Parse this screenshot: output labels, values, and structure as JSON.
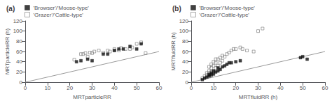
{
  "chart_data": [
    {
      "type": "scatter",
      "title": "(a)",
      "xlabel": "MRTparticleRR",
      "ylabel": "MRTparticleRR (h)",
      "xlim": [
        0,
        60
      ],
      "ylim": [
        0,
        120
      ],
      "xticks": [
        0,
        10,
        20,
        30,
        40,
        50,
        60
      ],
      "yticks": [
        0,
        20,
        40,
        60,
        80,
        100,
        120
      ],
      "grid": false,
      "legend": "upper left",
      "series": [
        {
          "type": "line",
          "color": "#999999",
          "x": [
            0,
            60
          ],
          "values": [
            0,
            60
          ]
        },
        {
          "name": "'Grazer'/'Cattle-type'",
          "type": "scatter",
          "marker": "open_square",
          "color": "#777777",
          "x": [
            22,
            25,
            26,
            27,
            28,
            29,
            30,
            31,
            33,
            35,
            37,
            38,
            40,
            40,
            42,
            43,
            45,
            47,
            48,
            50,
            52,
            54
          ],
          "values": [
            44,
            55,
            55,
            57,
            50,
            58,
            57,
            60,
            62,
            58,
            62,
            60,
            62,
            65,
            62,
            67,
            65,
            65,
            68,
            75,
            78,
            57
          ]
        },
        {
          "name": "'Browser'/'Moose-type'",
          "type": "scatter",
          "marker": "square",
          "color": "#111111",
          "x": [
            23,
            25,
            28,
            30,
            35,
            37,
            40,
            42,
            44,
            47,
            50,
            52
          ],
          "values": [
            40,
            42,
            45,
            42,
            55,
            55,
            62,
            65,
            65,
            70,
            65,
            75
          ]
        }
      ]
    },
    {
      "type": "scatter",
      "title": "(b)",
      "xlabel": "MRTfluidRR (h)",
      "ylabel": "MRTfluidRR (h)",
      "xlim": [
        0,
        60
      ],
      "ylim": [
        0,
        120
      ],
      "xticks": [
        0,
        10,
        20,
        30,
        40,
        50,
        60
      ],
      "yticks": [
        0,
        20,
        40,
        60,
        80,
        100,
        120
      ],
      "grid": false,
      "legend": "upper left",
      "series": [
        {
          "type": "line",
          "color": "#999999",
          "x": [
            0,
            60
          ],
          "values": [
            0,
            60
          ]
        },
        {
          "name": "'Grazer'/'Cattle-type'",
          "type": "scatter",
          "marker": "open_square",
          "color": "#777777",
          "x": [
            5,
            6,
            7,
            7,
            8,
            8,
            8,
            9,
            9,
            9,
            10,
            10,
            10,
            11,
            11,
            11,
            12,
            12,
            13,
            13,
            14,
            14,
            15,
            16,
            17,
            18,
            19,
            20,
            22,
            23,
            25,
            28,
            30,
            32
          ],
          "values": [
            8,
            12,
            14,
            18,
            18,
            22,
            30,
            20,
            28,
            35,
            22,
            32,
            40,
            28,
            38,
            45,
            32,
            45,
            38,
            48,
            42,
            52,
            50,
            55,
            58,
            62,
            65,
            65,
            68,
            65,
            62,
            60,
            100,
            105
          ]
        },
        {
          "name": "'Browser'/'Moose-type'",
          "type": "scatter",
          "marker": "square",
          "color": "#111111",
          "x": [
            5,
            6,
            7,
            8,
            8,
            9,
            9,
            10,
            10,
            11,
            12,
            12,
            13,
            14,
            15,
            16,
            17,
            18,
            20,
            22,
            49,
            50,
            52
          ],
          "values": [
            5,
            8,
            10,
            12,
            15,
            14,
            18,
            16,
            22,
            20,
            22,
            28,
            25,
            30,
            32,
            35,
            38,
            38,
            40,
            42,
            48,
            50,
            45
          ]
        }
      ]
    }
  ]
}
